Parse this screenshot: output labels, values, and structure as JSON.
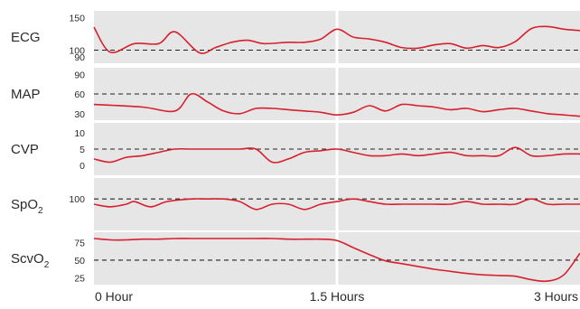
{
  "chart_data": {
    "type": "line",
    "x_ticks": [
      "0 Hour",
      "1.5 Hours",
      "3 Hours"
    ],
    "x_range_hours": [
      0,
      3
    ],
    "grid": false,
    "colors": {
      "line": "#d6202e",
      "panel": "#e6e6e6",
      "divider": "#ffffff",
      "reference": "#222222"
    },
    "panels": [
      {
        "label": "ECG",
        "sub": "",
        "y_ticks": [
          150,
          100,
          90
        ],
        "ylim": [
          80,
          160
        ],
        "reference": 100,
        "x": [
          0,
          0.1,
          0.25,
          0.4,
          0.5,
          0.65,
          0.75,
          0.85,
          0.95,
          1.05,
          1.2,
          1.3,
          1.4,
          1.5,
          1.6,
          1.7,
          1.8,
          1.9,
          2.0,
          2.1,
          2.2,
          2.3,
          2.4,
          2.5,
          2.6,
          2.7,
          2.8,
          2.9,
          3.0
        ],
        "y": [
          135,
          97,
          110,
          110,
          128,
          96,
          104,
          112,
          115,
          110,
          112,
          112,
          117,
          132,
          120,
          117,
          112,
          104,
          103,
          108,
          110,
          103,
          107,
          104,
          113,
          133,
          136,
          132,
          130
        ]
      },
      {
        "label": "MAP",
        "sub": "",
        "y_ticks": [
          90,
          60,
          30
        ],
        "ylim": [
          20,
          100
        ],
        "reference": 60,
        "x": [
          0,
          0.3,
          0.5,
          0.6,
          0.7,
          0.8,
          0.9,
          1.0,
          1.1,
          1.2,
          1.3,
          1.4,
          1.5,
          1.6,
          1.7,
          1.8,
          1.9,
          2.0,
          2.1,
          2.2,
          2.3,
          2.4,
          2.5,
          2.6,
          2.7,
          2.8,
          2.9,
          3.0
        ],
        "y": [
          44,
          40,
          34,
          60,
          48,
          34,
          30,
          38,
          38,
          36,
          34,
          32,
          28,
          32,
          42,
          34,
          44,
          42,
          40,
          36,
          38,
          33,
          36,
          38,
          34,
          30,
          28,
          26
        ]
      },
      {
        "label": "CVP",
        "sub": "",
        "y_ticks": [
          10,
          5,
          0
        ],
        "ylim": [
          -3,
          13
        ],
        "reference": 5,
        "x": [
          0,
          0.1,
          0.2,
          0.3,
          0.4,
          0.5,
          0.6,
          0.7,
          0.8,
          0.9,
          1.0,
          1.1,
          1.2,
          1.3,
          1.4,
          1.5,
          1.6,
          1.7,
          1.8,
          1.9,
          2.0,
          2.1,
          2.2,
          2.3,
          2.4,
          2.5,
          2.6,
          2.7,
          2.8,
          2.9,
          3.0
        ],
        "y": [
          2,
          1,
          2.5,
          3,
          4,
          5,
          5,
          5,
          5,
          5,
          5,
          1,
          2,
          4,
          4.5,
          5,
          4,
          3,
          3,
          3.5,
          3,
          3.5,
          4,
          3,
          3,
          3,
          5.5,
          3,
          3,
          3.5,
          3.5
        ]
      },
      {
        "label": "SpO",
        "sub": "2",
        "y_ticks": [
          100
        ],
        "ylim": [
          88,
          108
        ],
        "reference": 100,
        "x": [
          0,
          0.1,
          0.2,
          0.25,
          0.35,
          0.45,
          0.6,
          0.7,
          0.8,
          0.9,
          1.0,
          1.1,
          1.2,
          1.3,
          1.4,
          1.5,
          1.6,
          1.7,
          1.8,
          1.9,
          2.0,
          2.1,
          2.2,
          2.3,
          2.4,
          2.5,
          2.6,
          2.7,
          2.8,
          2.9,
          3.0
        ],
        "y": [
          98,
          97,
          98,
          99,
          97,
          99,
          100,
          100,
          100,
          99,
          96,
          98,
          98,
          96,
          98,
          99,
          100,
          99,
          98,
          98,
          98,
          98,
          98,
          99,
          98,
          98,
          98,
          100,
          98,
          98,
          98
        ]
      },
      {
        "label": "ScvO",
        "sub": "2",
        "y_ticks": [
          75,
          50,
          25
        ],
        "ylim": [
          15,
          90
        ],
        "reference": 50,
        "x": [
          0,
          0.1,
          0.2,
          0.3,
          0.4,
          0.5,
          0.6,
          0.7,
          0.8,
          0.9,
          1.0,
          1.1,
          1.2,
          1.3,
          1.4,
          1.5,
          1.6,
          1.7,
          1.8,
          1.9,
          2.0,
          2.1,
          2.2,
          2.3,
          2.4,
          2.5,
          2.6,
          2.7,
          2.8,
          2.9,
          3.0
        ],
        "y": [
          81,
          79,
          79,
          80,
          80,
          81,
          81,
          81,
          81,
          81,
          81,
          81,
          80,
          80,
          80,
          78,
          68,
          58,
          49,
          45,
          41,
          37,
          34,
          31,
          29,
          28,
          27,
          22,
          20,
          29,
          60
        ]
      }
    ]
  }
}
